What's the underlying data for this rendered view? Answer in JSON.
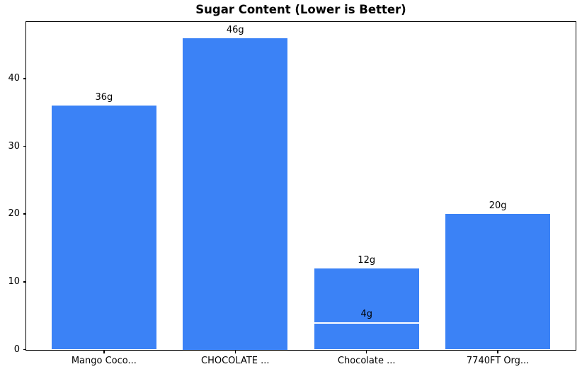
{
  "chart_data": {
    "type": "bar",
    "title": "Sugar Content (Lower is Better)",
    "categories": [
      "Mango Coco...",
      "CHOCOLATE ...",
      "Chocolate ...",
      "7740FT Org..."
    ],
    "series": [
      {
        "name": "sugar_grams",
        "values": [
          36,
          46,
          12,
          20
        ]
      }
    ],
    "data_labels": [
      "36g",
      "46g",
      "12g",
      "20g"
    ],
    "overlay_bars": [
      {
        "category_index": 2,
        "value": 4,
        "label": "4g"
      }
    ],
    "xlabel": "",
    "ylabel": "",
    "ylim": [
      0,
      48.3
    ],
    "yticks": [
      0,
      10,
      20,
      30,
      40
    ],
    "grid": false,
    "legend": "none",
    "bar_color": "#3B82F6",
    "axis_color": "#000000",
    "text_color": "#000000",
    "background_color": "#FFFFFF"
  }
}
